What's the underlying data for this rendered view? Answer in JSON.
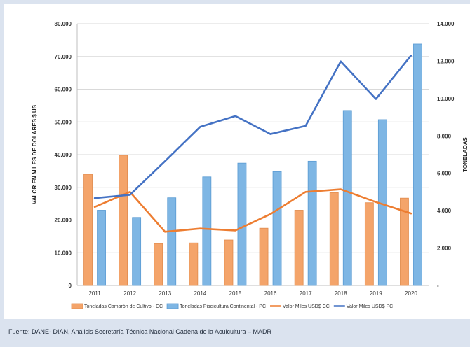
{
  "chart_data": {
    "type": "bar",
    "categories": [
      "2011",
      "2012",
      "2013",
      "2014",
      "2015",
      "2016",
      "2017",
      "2018",
      "2019",
      "2020"
    ],
    "ylabel": "VALOR EN MILES DE  DOLARES $ US",
    "y2label": "TONELADAS",
    "ylim": [
      0,
      80000
    ],
    "y2lim": [
      0,
      14000
    ],
    "yticks": [
      "0",
      "10.000",
      "20.000",
      "30.000",
      "40.000",
      "50.000",
      "60.000",
      "70.000",
      "80.000"
    ],
    "y2ticks": [
      "-",
      "2.000",
      "4.000",
      "6.000",
      "8.000",
      "10.000",
      "12.000",
      "14.000"
    ],
    "grid": true,
    "legend_position": "bottom",
    "series": [
      {
        "name": "Toneladas Camarón de Cultivo - CC",
        "kind": "bar",
        "axis": "left",
        "color": "#f4a46a",
        "values": [
          34000,
          39800,
          12800,
          13000,
          13900,
          17500,
          23000,
          28400,
          25300,
          26700
        ]
      },
      {
        "name": "Toneladas Piscicultura Continental - PC",
        "kind": "bar",
        "axis": "left",
        "color": "#7eb6e4",
        "values": [
          23000,
          20800,
          26800,
          33200,
          37400,
          34800,
          38000,
          53500,
          50700,
          73800
        ]
      },
      {
        "name": "Valor Miles USD$ CC",
        "kind": "line",
        "axis": "left",
        "color": "#ed7d31",
        "values": [
          24000,
          28600,
          16400,
          17400,
          16800,
          21800,
          28600,
          29400,
          25500,
          22000
        ]
      },
      {
        "name": "Valor Miles USD$ PC",
        "kind": "line",
        "axis": "left",
        "color": "#4472c4",
        "values": [
          26700,
          27700,
          38000,
          48500,
          51800,
          46300,
          48800,
          68500,
          57000,
          70300
        ]
      }
    ]
  },
  "source": "Fuente: DANE- DIAN, Análisis Secretaría Técnica Nacional Cadena de la Acuicultura – MADR"
}
